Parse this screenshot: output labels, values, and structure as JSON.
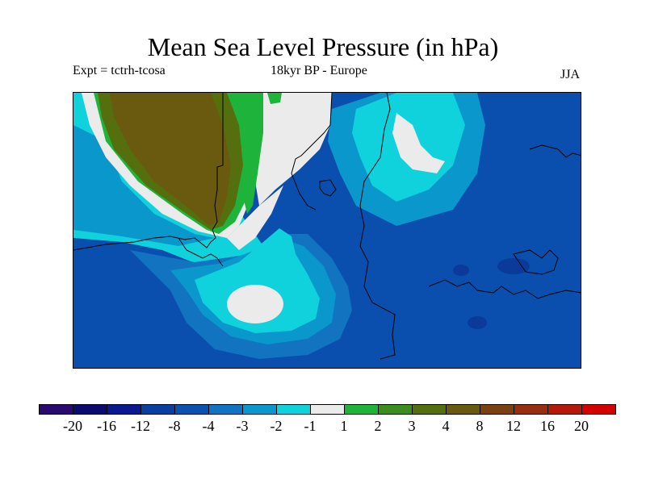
{
  "header": {
    "title": "Mean Sea Level Pressure (in hPa)",
    "experiment": "Expt = tctrh-tcosa",
    "period": "18kyr BP - Europe",
    "season": "JJA"
  },
  "legend": {
    "colors": [
      "#2a0a6e",
      "#0b0b6e",
      "#0a1a8e",
      "#0a3fa0",
      "#0a52ae",
      "#1273c0",
      "#0a98cc",
      "#10d2dc",
      "#ebebeb",
      "#1eb43c",
      "#3c8c1e",
      "#556e0e",
      "#6a5a10",
      "#7a4010",
      "#962e10",
      "#b41a0a",
      "#d20000"
    ],
    "labels": [
      "-20",
      "-16",
      "-12",
      "-8",
      "-4",
      "-3",
      "-2",
      "-1",
      "1",
      "2",
      "3",
      "4",
      "8",
      "12",
      "16",
      "20"
    ]
  },
  "map": {
    "region": "Europe",
    "colors": {
      "ocean_base": "#0a4fae",
      "negative_3_4": "#1273c0",
      "negative_2_3": "#0a98cc",
      "negative_1_2": "#10d2dc",
      "near_zero": "#ebebeb",
      "positive_1_2": "#1eb43c",
      "positive_2_3": "#3c8c1e",
      "positive_3_4": "#556e0e",
      "positive_4_8": "#6a5a10",
      "dark_low": "#0a3a9a"
    }
  }
}
